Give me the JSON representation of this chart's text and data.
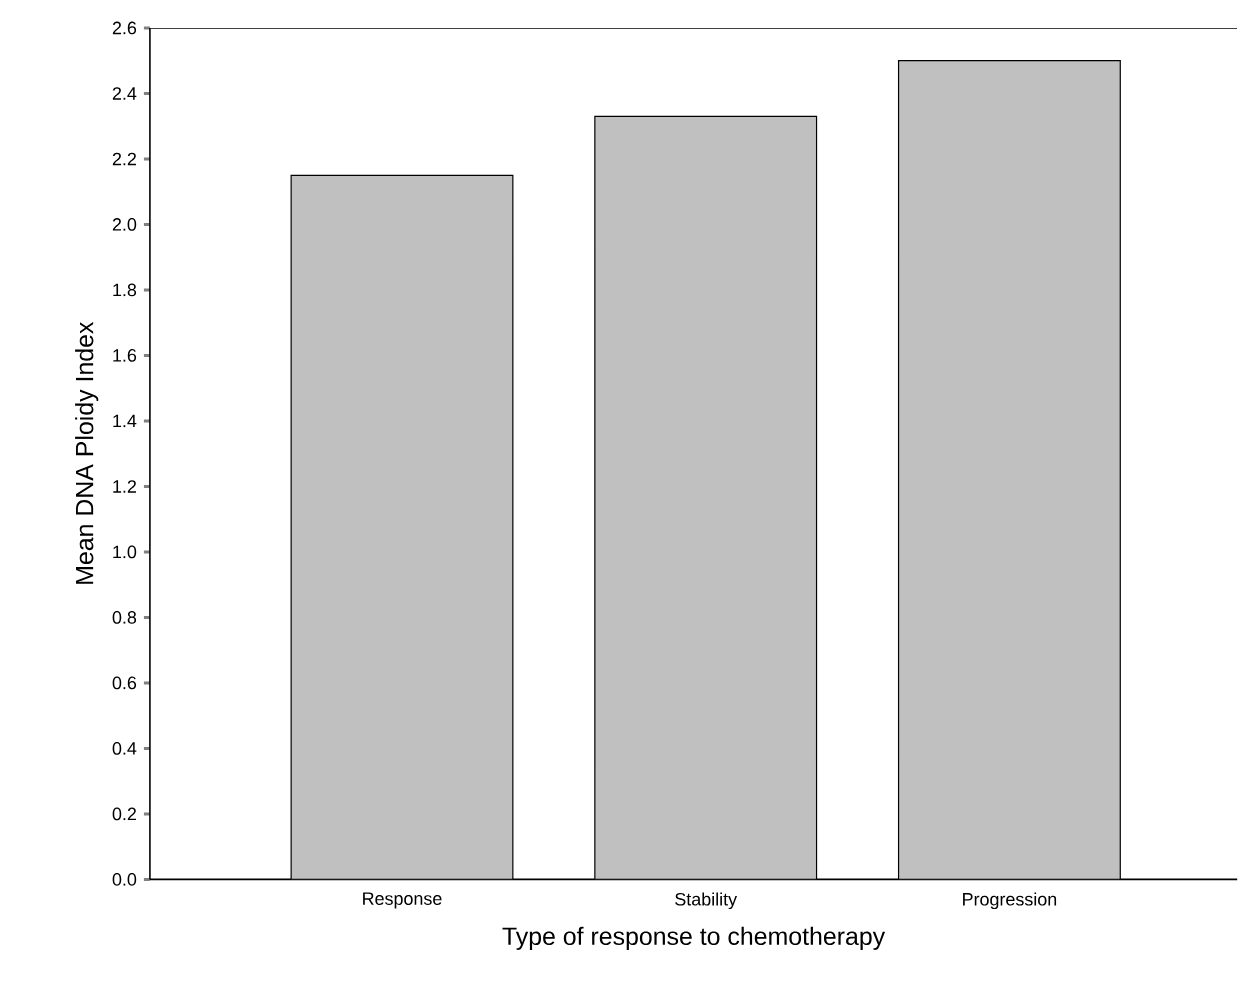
{
  "chart_data": {
    "type": "bar",
    "xlabel": "Type of response to chemotherapy",
    "ylabel": "Mean DNA Ploidy Index",
    "categories": [
      "Response",
      "Stability",
      "Progression"
    ],
    "values": [
      2.15,
      2.33,
      2.5
    ],
    "color": "#c0c0c0",
    "ylim": [
      0,
      2.6
    ],
    "yticks": [
      {
        "value": 0,
        "label": "0.0"
      },
      0.2,
      0.4,
      0.6,
      0.8,
      {
        "value": 1,
        "label": "1.0"
      },
      1.2,
      1.4,
      1.6,
      1.8,
      {
        "value": 2,
        "label": "2.0"
      },
      2.2,
      2.4,
      2.6
    ],
    "grid": false
  }
}
